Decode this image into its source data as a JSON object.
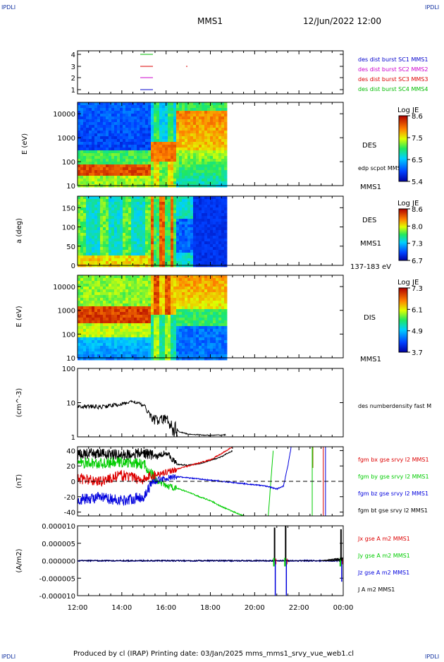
{
  "header": {
    "corner_left": "IPDLI",
    "corner_right": "IPDLI",
    "title": "MMS1",
    "datetime": "12/Jun/2022 12:00"
  },
  "footer": {
    "text": "Produced by cl (IRAP)   Printing date: 03/Jan/2025   mms_mms1_srvy_vue_web1.cl",
    "corner_left": "IPDLI",
    "corner_right": "IPDLI"
  },
  "time_axis": {
    "ticks": [
      "12:00",
      "14:00",
      "16:00",
      "18:00",
      "20:00",
      "22:00",
      "00:00"
    ],
    "range_hours": [
      12,
      24
    ],
    "data_end_hours": 18.7
  },
  "colors": {
    "mms1": "#0000cc",
    "mms2": "#cc00cc",
    "mms3": "#dd0000",
    "mms4": "#00bb00",
    "bx": "#dd0000",
    "by": "#00cc00",
    "bz": "#0000dd",
    "bt": "#000000"
  },
  "chart_data": [
    {
      "panel": "availability",
      "type": "line",
      "yticks": [
        "4",
        "3",
        "2",
        "1"
      ],
      "legend": [
        {
          "label": "des dist burst SC1 MMS1",
          "color": "#0000cc"
        },
        {
          "label": "des dist burst SC2 MMS2",
          "color": "#cc00cc"
        },
        {
          "label": "des dist burst SC3 MMS3",
          "color": "#dd0000"
        },
        {
          "label": "des dist burst SC4 MMS4",
          "color": "#00bb00"
        }
      ]
    },
    {
      "panel": "des_energy",
      "type": "heatmap",
      "ylabel": "E (eV)",
      "yscale": "log",
      "ylim": [
        10,
        30000
      ],
      "yticks": [
        "10000",
        "1000",
        "100",
        "10"
      ],
      "label": "DES",
      "sublabel": "edp scpot MMS1",
      "satellite": "MMS1",
      "colorbar": {
        "title": "Log JE",
        "ticks": [
          "8.6",
          "7.5",
          "6.5",
          "5.4"
        ],
        "min": 5.4,
        "max": 8.6
      }
    },
    {
      "panel": "des_pitch",
      "type": "heatmap",
      "ylabel": "a (deg)",
      "ylim": [
        0,
        180
      ],
      "yticks": [
        "150",
        "100",
        "50",
        "0"
      ],
      "label": "DES",
      "satellite": "MMS1",
      "energy_range": "137-183 eV",
      "colorbar": {
        "title": "Log JE",
        "ticks": [
          "8.6",
          "8.0",
          "7.3",
          "6.7"
        ],
        "min": 6.7,
        "max": 8.6
      }
    },
    {
      "panel": "dis_energy",
      "type": "heatmap",
      "ylabel": "E (eV)",
      "yscale": "log",
      "ylim": [
        10,
        30000
      ],
      "yticks": [
        "10000",
        "1000",
        "100",
        "10"
      ],
      "label": "DIS",
      "satellite": "MMS1",
      "colorbar": {
        "title": "Log JE",
        "ticks": [
          "7.3",
          "6.1",
          "4.9",
          "3.7"
        ],
        "min": 3.7,
        "max": 7.3
      }
    },
    {
      "panel": "density",
      "type": "line",
      "ylabel": "(cm^-3)",
      "yscale": "log",
      "ylim": [
        1,
        100
      ],
      "yticks": [
        "100",
        "10",
        "1"
      ],
      "legend": [
        {
          "label": "des numberdensity fast M",
          "color": "#000000"
        }
      ],
      "x": [
        12.0,
        13.0,
        14.0,
        14.5,
        15.0,
        15.3,
        15.6,
        16.0,
        16.3,
        16.6,
        17.0,
        17.5,
        18.0,
        18.7
      ],
      "values": [
        8,
        7.5,
        9,
        11,
        8,
        4,
        3,
        3.5,
        2,
        1.4,
        1.2,
        1.15,
        1.1,
        1.15
      ]
    },
    {
      "panel": "magnetic_field",
      "type": "line",
      "ylabel": "(nT)",
      "ylim": [
        -45,
        45
      ],
      "yticks": [
        "40",
        "20",
        "0",
        "-20",
        "-40"
      ],
      "legend": [
        {
          "label": "fgm bx gse srvy l2 MMS1",
          "color": "#dd0000"
        },
        {
          "label": "fgm by gse srvy l2 MMS1",
          "color": "#00cc00"
        },
        {
          "label": "fgm bz gse srvy l2 MMS1",
          "color": "#0000dd"
        },
        {
          "label": "fgm bt gse srvy l2 MMS1",
          "color": "#000000"
        }
      ],
      "series": [
        {
          "name": "fgm bt gse srvy l2 MMS1",
          "x": [
            12,
            13,
            14,
            15,
            15.3,
            15.6,
            16,
            16.5,
            17,
            17.5,
            18,
            18.5,
            19
          ],
          "values": [
            35,
            36,
            34,
            37,
            35,
            32,
            38,
            22,
            21,
            23,
            27,
            32,
            40
          ]
        },
        {
          "name": "fgm by gse srvy l2 MMS1",
          "x": [
            12,
            13,
            14,
            15,
            15.3,
            15.6,
            16,
            16.5,
            17,
            17.5,
            18,
            18.5,
            19.5,
            20.0,
            20.6,
            20.85
          ],
          "values": [
            24,
            23,
            25,
            22,
            12,
            0,
            -6,
            -9,
            -14,
            -20,
            -25,
            -33,
            -45,
            -50,
            -50,
            45
          ]
        },
        {
          "name": "fgm bz gse srvy l2 MMS1",
          "x": [
            12,
            13,
            14,
            15,
            15.4,
            15.8,
            16.5,
            17.5,
            18.5,
            19.5,
            20.5,
            21.0,
            21.3,
            21.5,
            21.65
          ],
          "values": [
            -24,
            -21,
            -25,
            -20,
            0,
            3,
            6,
            3,
            0,
            -3,
            -6,
            -10,
            -6,
            20,
            45
          ]
        },
        {
          "name": "fgm bx gse srvy l2 MMS1",
          "x": [
            12,
            13,
            14,
            15,
            15.4,
            16,
            16.5,
            17,
            18,
            18.5,
            19
          ],
          "values": [
            4,
            0,
            8,
            2,
            8,
            12,
            16,
            20,
            28,
            36,
            45
          ]
        }
      ]
    },
    {
      "panel": "current_density",
      "type": "line",
      "ylabel": "(A/m2)",
      "ylim": [
        -1e-05,
        1e-05
      ],
      "yticks": [
        "0.000010",
        "0.000005",
        "0.000000",
        "-0.000005",
        "-0.000010"
      ],
      "legend": [
        {
          "label": "Jx gse A m2 MMS1",
          "color": "#dd0000"
        },
        {
          "label": "Jy gse A m2 MMS1",
          "color": "#00cc00"
        },
        {
          "label": "Jz gse A m2 MMS1",
          "color": "#0000dd"
        },
        {
          "label": "J A m2 MMS1",
          "color": "#000000"
        }
      ],
      "spikes": [
        {
          "x": 20.9,
          "J": 9.5e-06,
          "Jz": -1e-05
        },
        {
          "x": 21.4,
          "J": 1e-05,
          "Jz": -1e-05
        },
        {
          "x": 23.9,
          "J": 9e-06,
          "Jz": -6e-06
        }
      ]
    }
  ]
}
